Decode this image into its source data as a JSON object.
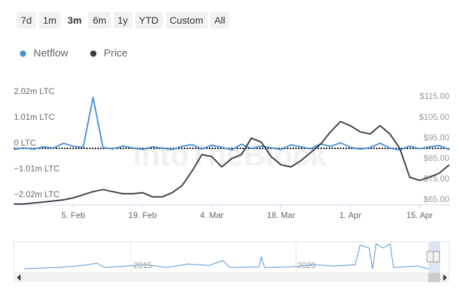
{
  "range_buttons": [
    "7d",
    "1m",
    "3m",
    "6m",
    "1y",
    "YTD",
    "Custom",
    "All"
  ],
  "watermark": "IntoTheBlock",
  "chart_data": {
    "type": "line",
    "categories": [
      null,
      null,
      null,
      null,
      null,
      null,
      "5. Feb",
      null,
      null,
      null,
      null,
      null,
      null,
      "19. Feb",
      null,
      null,
      null,
      null,
      null,
      null,
      "4. Mar",
      null,
      null,
      null,
      null,
      null,
      null,
      "18. Mar",
      null,
      null,
      null,
      null,
      null,
      null,
      "1. Apr",
      null,
      null,
      null,
      null,
      null,
      null,
      "15. Apr",
      null,
      null,
      null
    ],
    "series": [
      {
        "name": "Netflow",
        "color": "#4a90d9",
        "values": [
          -40000,
          20000,
          -30000,
          60000,
          10000,
          200000,
          80000,
          40000,
          2000000,
          30000,
          -20000,
          90000,
          20000,
          -40000,
          60000,
          10000,
          -50000,
          80000,
          150000,
          -30000,
          120000,
          40000,
          -60000,
          160000,
          -10000,
          90000,
          20000,
          -40000,
          140000,
          60000,
          -20000,
          180000,
          70000,
          220000,
          40000,
          -30000,
          30000,
          200000,
          10000,
          -60000,
          90000,
          -20000,
          60000,
          110000,
          -50000
        ]
      },
      {
        "name": "Price",
        "color": "#3a3d42",
        "axis": "y2",
        "values": [
          63,
          63,
          63.5,
          64,
          64.5,
          65,
          66,
          67.5,
          69,
          70,
          69,
          68,
          68,
          68.5,
          66.5,
          66.5,
          68.5,
          72,
          79,
          87,
          86,
          81,
          85,
          87,
          95,
          93,
          86,
          82,
          81,
          84,
          88,
          92,
          98,
          103,
          101,
          98,
          97,
          101,
          97,
          90,
          76,
          74.5,
          76,
          78,
          82
        ]
      }
    ],
    "ylim": [
      -2020000,
      2020000
    ],
    "yticks": [
      {
        "value": -2020000,
        "label": "−2.02m LTC"
      },
      {
        "value": -1010000,
        "label": "−1.01m LTC"
      },
      {
        "value": 0,
        "label": "0 LTC"
      },
      {
        "value": 1010000,
        "label": "1.01m LTC"
      },
      {
        "value": 2020000,
        "label": "2.02m LTC"
      }
    ],
    "y2lim": [
      65,
      115
    ],
    "y2ticks": [
      {
        "value": 65,
        "label": "$65.00"
      },
      {
        "value": 75,
        "label": "$75.00"
      },
      {
        "value": 85,
        "label": "$85.00"
      },
      {
        "value": 95,
        "label": "$95.00"
      },
      {
        "value": 105,
        "label": "$105.00"
      },
      {
        "value": 115,
        "label": "$115.00"
      }
    ],
    "legend": "top-left"
  },
  "navigator": {
    "labels": [
      "2015",
      "2020"
    ]
  }
}
